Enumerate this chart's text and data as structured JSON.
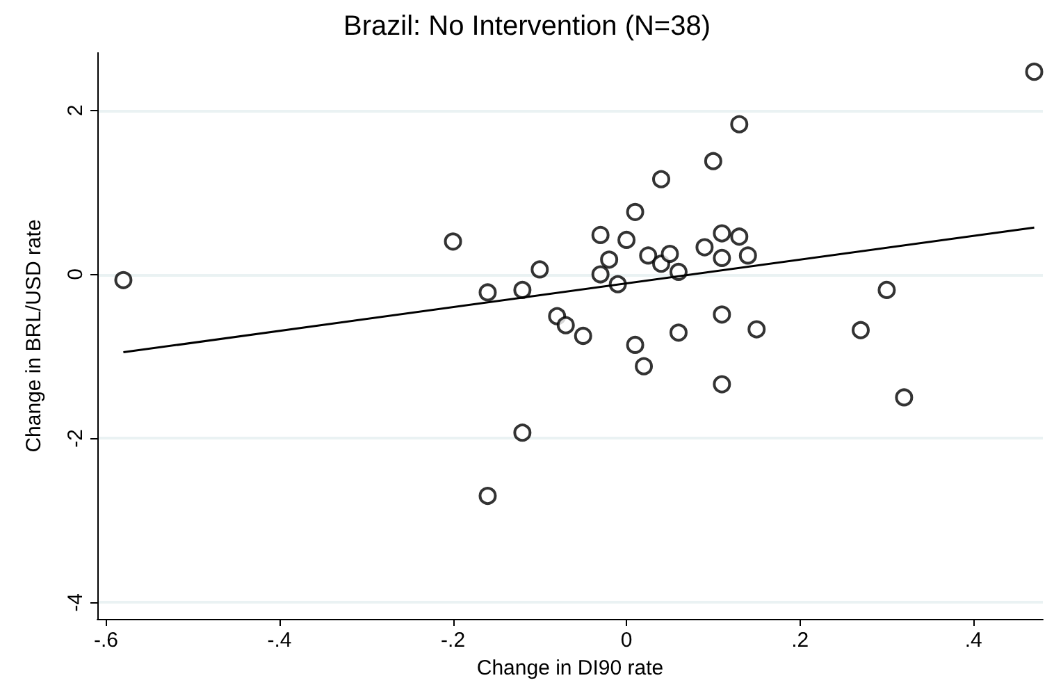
{
  "chart_data": {
    "type": "scatter",
    "title": "Brazil: No Intervention (N=38)",
    "xlabel": "Change in DI90 rate",
    "ylabel": "Change in BRL/USD rate",
    "xlim": [
      -0.61,
      0.48
    ],
    "ylim": [
      -4.2,
      2.7
    ],
    "xticks": [
      {
        "value": -0.6,
        "label": "-.6"
      },
      {
        "value": -0.4,
        "label": "-.4"
      },
      {
        "value": -0.2,
        "label": "-.2"
      },
      {
        "value": 0,
        "label": "0"
      },
      {
        "value": 0.2,
        "label": ".2"
      },
      {
        "value": 0.4,
        "label": ".4"
      }
    ],
    "yticks": [
      -4,
      -2,
      0,
      2
    ],
    "grid": "y",
    "marker": "circle",
    "series": [
      {
        "color": "#000000",
        "x": [
          -0.58,
          -0.2,
          -0.16,
          -0.12,
          -0.1,
          -0.12,
          -0.16,
          -0.08,
          -0.07,
          -0.05,
          -0.03,
          -0.03,
          -0.02,
          -0.01,
          0.0,
          0.01,
          0.01,
          0.02,
          0.025,
          0.04,
          0.04,
          0.05,
          0.06,
          0.06,
          0.1,
          0.09,
          0.11,
          0.11,
          0.11,
          0.11,
          0.13,
          0.13,
          0.14,
          0.15,
          0.27,
          0.3,
          0.32,
          0.47
        ],
        "values": [
          -0.07,
          0.4,
          -0.22,
          -0.19,
          0.06,
          -1.93,
          -2.7,
          -0.51,
          -0.62,
          -0.75,
          0.48,
          0.0,
          0.18,
          -0.12,
          0.42,
          0.76,
          -0.86,
          -1.12,
          0.23,
          1.16,
          0.13,
          0.25,
          0.03,
          -0.71,
          1.38,
          0.33,
          0.5,
          0.2,
          -0.49,
          -1.34,
          0.46,
          1.83,
          0.23,
          -0.67,
          -0.68,
          -0.19,
          -1.5,
          2.47
        ]
      },
      {
        "type": "line",
        "color": "#000000",
        "marker": "none",
        "line_style": "solid",
        "x": [
          -0.58,
          0.47
        ],
        "values": [
          -0.95,
          0.57
        ]
      }
    ]
  }
}
